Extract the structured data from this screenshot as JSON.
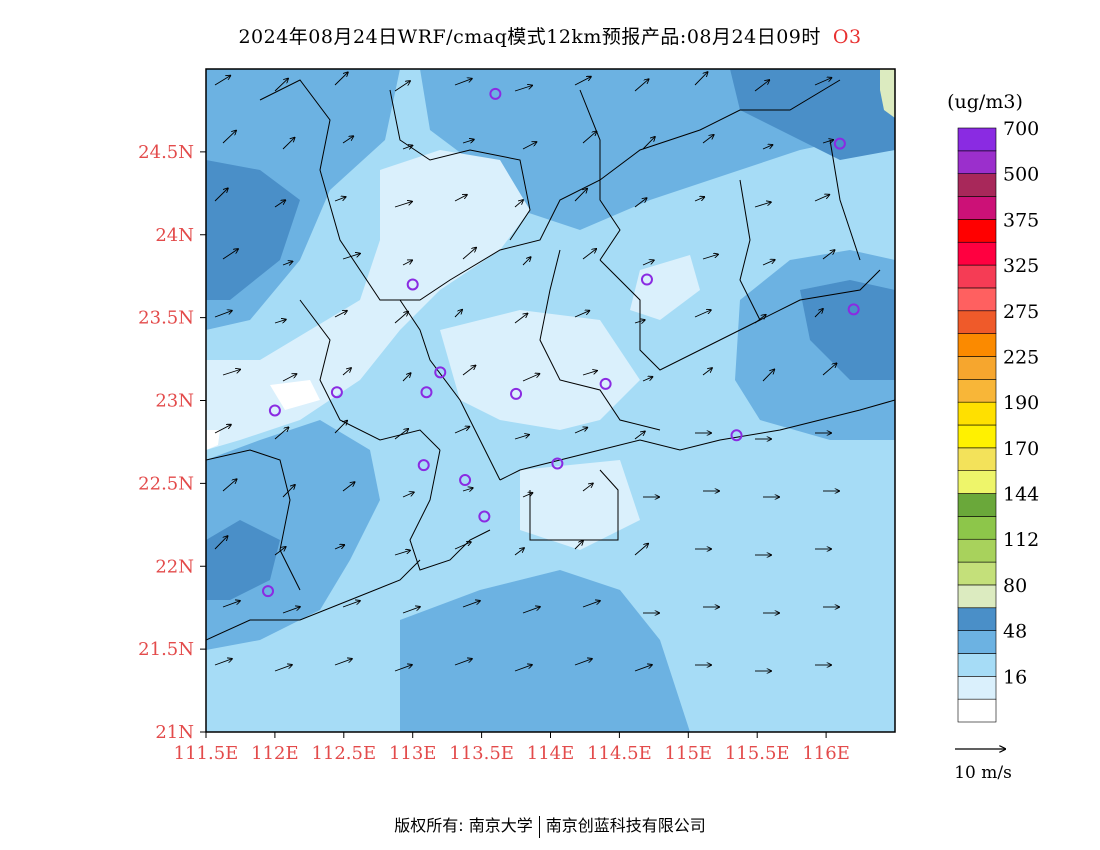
{
  "title": {
    "text": "2024年08月24日WRF/cmaq模式12km预报产品:08月24日09时",
    "species": "O3"
  },
  "colorbar": {
    "unit": "(ug/m3)",
    "levels": [
      {
        "label": "",
        "color": "#ffffff"
      },
      {
        "label": "16",
        "color": "#daf0fc"
      },
      {
        "label": "",
        "color": "#a6dcf6"
      },
      {
        "label": "48",
        "color": "#6cb2e2"
      },
      {
        "label": "",
        "color": "#4a8fc8"
      },
      {
        "label": "80",
        "color": "#dcebc0"
      },
      {
        "label": "",
        "color": "#c4e07a"
      },
      {
        "label": "112",
        "color": "#a8d25c"
      },
      {
        "label": "",
        "color": "#8dc64a"
      },
      {
        "label": "144",
        "color": "#6aa83a"
      },
      {
        "label": "",
        "color": "#eef56a"
      },
      {
        "label": "170",
        "color": "#f3e25a"
      },
      {
        "label": "",
        "color": "#fff100"
      },
      {
        "label": "190",
        "color": "#ffe000"
      },
      {
        "label": "",
        "color": "#f8b638"
      },
      {
        "label": "225",
        "color": "#f6a62e"
      },
      {
        "label": "",
        "color": "#fb8a00"
      },
      {
        "label": "275",
        "color": "#ef5a2a"
      },
      {
        "label": "",
        "color": "#ff6060"
      },
      {
        "label": "325",
        "color": "#f53c55"
      },
      {
        "label": "",
        "color": "#ff0040"
      },
      {
        "label": "375",
        "color": "#ff0000"
      },
      {
        "label": "",
        "color": "#cc1177"
      },
      {
        "label": "500",
        "color": "#a8285a"
      },
      {
        "label": "",
        "color": "#9b2fcc"
      },
      {
        "label": "700",
        "color": "#8a2be2"
      }
    ]
  },
  "axes": {
    "lat_labels": [
      "21N",
      "21.5N",
      "22N",
      "22.5N",
      "23N",
      "23.5N",
      "24N",
      "24.5N"
    ],
    "lat_values": [
      21,
      21.5,
      22,
      22.5,
      23,
      23.5,
      24,
      24.5
    ],
    "lon_labels": [
      "111.5E",
      "112E",
      "112.5E",
      "113E",
      "113.5E",
      "114E",
      "114.5E",
      "115E",
      "115.5E",
      "116E"
    ],
    "lon_values": [
      111.5,
      112,
      112.5,
      113,
      113.5,
      114,
      114.5,
      115,
      115.5,
      116
    ],
    "lon_range": [
      111.5,
      116.5
    ],
    "lat_range": [
      21,
      25
    ]
  },
  "wind_legend": {
    "label": "10 m/s"
  },
  "stations": [
    {
      "lon": 113.6,
      "lat": 24.85
    },
    {
      "lon": 116.1,
      "lat": 24.55
    },
    {
      "lon": 113.0,
      "lat": 23.7
    },
    {
      "lon": 114.7,
      "lat": 23.73
    },
    {
      "lon": 116.2,
      "lat": 23.55
    },
    {
      "lon": 113.2,
      "lat": 23.17
    },
    {
      "lon": 112.45,
      "lat": 23.05
    },
    {
      "lon": 113.1,
      "lat": 23.05
    },
    {
      "lon": 113.75,
      "lat": 23.04
    },
    {
      "lon": 114.4,
      "lat": 23.1
    },
    {
      "lon": 112.0,
      "lat": 22.94
    },
    {
      "lon": 115.35,
      "lat": 22.79
    },
    {
      "lon": 113.08,
      "lat": 22.61
    },
    {
      "lon": 113.38,
      "lat": 22.52
    },
    {
      "lon": 114.05,
      "lat": 22.62
    },
    {
      "lon": 113.52,
      "lat": 22.3
    },
    {
      "lon": 111.95,
      "lat": 21.85
    }
  ],
  "copyright": {
    "left": "版权所有: 南京大学",
    "right": "南京创蓝科技有限公司"
  }
}
